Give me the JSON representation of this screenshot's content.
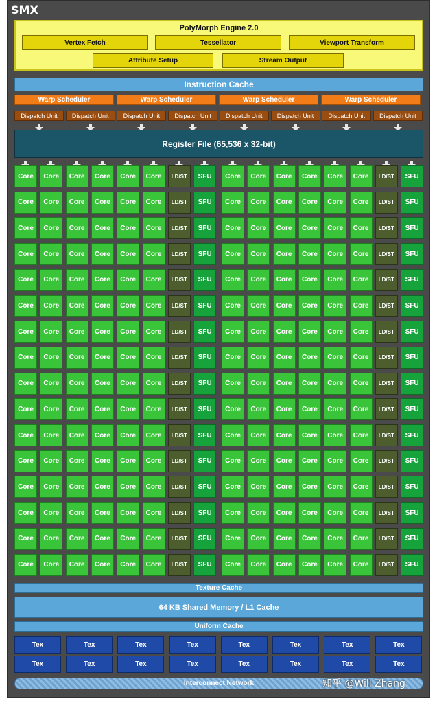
{
  "smx_title": "SMX",
  "polymorph": {
    "title": "PolyMorph Engine 2.0",
    "units": [
      "Vertex Fetch",
      "Tessellator",
      "Viewport Transform",
      "Attribute Setup",
      "Stream Output"
    ]
  },
  "instruction_cache": "Instruction Cache",
  "warp_scheduler": "Warp Scheduler",
  "warp_scheduler_count": 4,
  "dispatch_unit": "Dispatch Unit",
  "dispatch_unit_count": 8,
  "register_file": "Register File (65,536 x 32-bit)",
  "units": {
    "core": "Core",
    "ldst": "LD/ST",
    "sfu": "SFU"
  },
  "rows": 16,
  "texture_cache": "Texture Cache",
  "shared_memory": "64 KB Shared Memory / L1 Cache",
  "uniform_cache": "Uniform Cache",
  "tex_label": "Tex",
  "tex_rows": 2,
  "tex_per_row": 8,
  "interconnect": "Interconnect Network",
  "watermark": "知乎 @Will Zhang",
  "colors": {
    "core": "#3ac43a",
    "ldst": "#4d5d2e",
    "sfu": "#17a33c",
    "warp": "#f27c18",
    "dispatch": "#9a4d10",
    "register": "#1b5668",
    "cache": "#5ba7d9",
    "tex": "#1f4aa8",
    "polymorph": "#f8f879"
  }
}
